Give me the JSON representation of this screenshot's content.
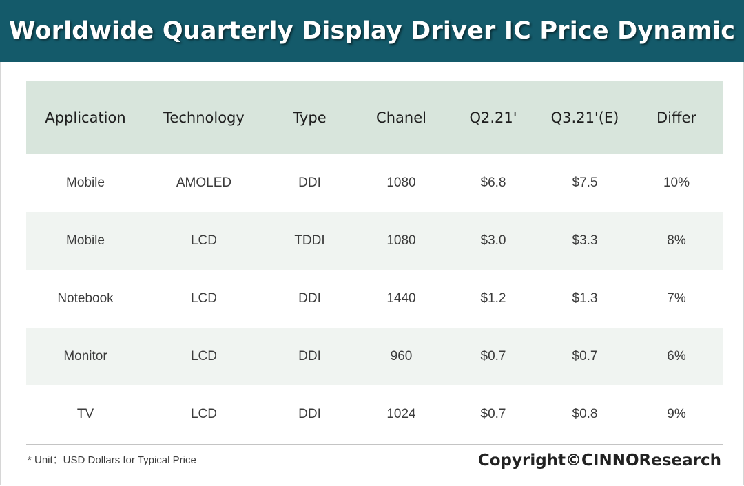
{
  "colors": {
    "banner": "#145a6a",
    "header_row": "#d8e5dc",
    "shaded_row": "#f0f4f1"
  },
  "chart_data": {
    "type": "table",
    "title": "Worldwide Quarterly Display Driver IC Price Dynamic",
    "columns": [
      "Application",
      "Technology",
      "Type",
      "Chanel",
      "Q2.21'",
      "Q3.21'(E)",
      "Differ"
    ],
    "rows": [
      [
        "Mobile",
        "AMOLED",
        "DDI",
        "1080",
        "$6.8",
        "$7.5",
        "10%"
      ],
      [
        "Mobile",
        "LCD",
        "TDDI",
        "1080",
        "$3.0",
        "$3.3",
        "8%"
      ],
      [
        "Notebook",
        "LCD",
        "DDI",
        "1440",
        "$1.2",
        "$1.3",
        "7%"
      ],
      [
        "Monitor",
        "LCD",
        "DDI",
        "960",
        "$0.7",
        "$0.7",
        "6%"
      ],
      [
        "TV",
        "LCD",
        "DDI",
        "1024",
        "$0.7",
        "$0.8",
        "9%"
      ]
    ],
    "footnote": "* Unit：USD Dollars for Typical Price",
    "copyright": "Copyright©CINNOResearch"
  }
}
